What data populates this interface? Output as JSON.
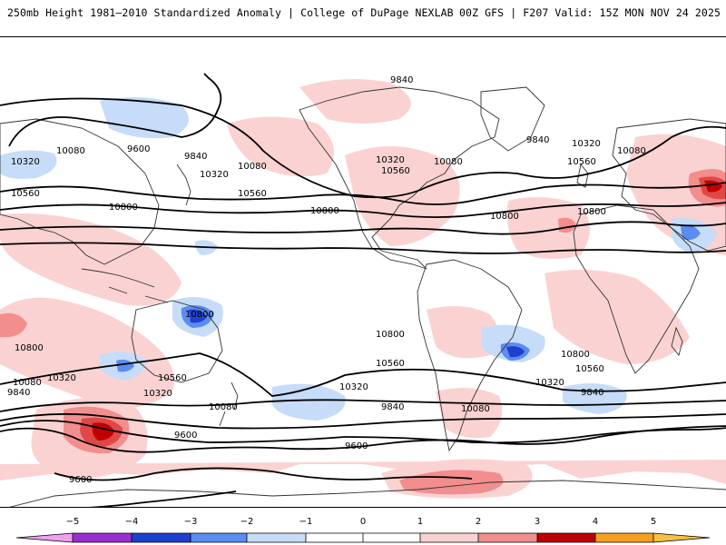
{
  "header": {
    "title_left": "250mb Height 1981–2010 Standardized Anomaly | College of DuPage NEXLAB",
    "title_right": "00Z GFS | F207 Valid: 15Z MON NOV 24 2025"
  },
  "colors": {
    "neg5": "#f0a0f0",
    "neg4": "#9a2fd0",
    "neg3": "#1f3fd0",
    "neg2": "#5b8cf0",
    "neg1": "#c6dcf8",
    "neutral": "#ffffff",
    "pos1": "#fbd2d2",
    "pos2": "#f28e8e",
    "pos3": "#e04848",
    "pos4": "#c00000",
    "pos5": "#f6a020",
    "contour": "#000000",
    "coast": "#333333"
  },
  "map": {
    "contour_labels": [
      {
        "id": "c9840-npac",
        "text": "9840"
      },
      {
        "id": "c9840-wpac",
        "text": "9840"
      },
      {
        "id": "c9600-npac",
        "text": "9600"
      },
      {
        "id": "c9840-natl",
        "text": "9840"
      },
      {
        "id": "c10320-natl",
        "text": "10320"
      },
      {
        "id": "c10080-eur",
        "text": "10080"
      },
      {
        "id": "c10080-w",
        "text": "10080"
      },
      {
        "id": "c10320-w",
        "text": "10320"
      },
      {
        "id": "c10080-pac",
        "text": "10080"
      },
      {
        "id": "c10320-pac",
        "text": "10320"
      },
      {
        "id": "c10560-w",
        "text": "10560"
      },
      {
        "id": "c10560-pac",
        "text": "10560"
      },
      {
        "id": "c10320-us",
        "text": "10320"
      },
      {
        "id": "c10560-us",
        "text": "10560"
      },
      {
        "id": "c10080-us",
        "text": "10080"
      },
      {
        "id": "c10560-atl",
        "text": "10560"
      },
      {
        "id": "c10800-w",
        "text": "10800"
      },
      {
        "id": "c10800-pac",
        "text": "10800"
      },
      {
        "id": "c10800-atl",
        "text": "10800"
      },
      {
        "id": "c10800-afr",
        "text": "10800"
      },
      {
        "id": "c10800-aus",
        "text": "10800"
      },
      {
        "id": "c10800-sw",
        "text": "10800"
      },
      {
        "id": "c10800-spac",
        "text": "10800"
      },
      {
        "id": "c10800-satl",
        "text": "10800"
      },
      {
        "id": "c10560-aus",
        "text": "10560"
      },
      {
        "id": "c10560-spac",
        "text": "10560"
      },
      {
        "id": "c10560-satl",
        "text": "10560"
      },
      {
        "id": "c10320-sw",
        "text": "10320"
      },
      {
        "id": "c10320-aus",
        "text": "10320"
      },
      {
        "id": "c10320-spac",
        "text": "10320"
      },
      {
        "id": "c10320-satl",
        "text": "10320"
      },
      {
        "id": "c10080-sw",
        "text": "10080"
      },
      {
        "id": "c10080-aus",
        "text": "10080"
      },
      {
        "id": "c10080-sam",
        "text": "10080"
      },
      {
        "id": "c9840-sw",
        "text": "9840"
      },
      {
        "id": "c9840-spac",
        "text": "9840"
      },
      {
        "id": "c9840-satl",
        "text": "9840"
      },
      {
        "id": "c9600-sw",
        "text": "9600"
      },
      {
        "id": "c9600-spac",
        "text": "9600"
      },
      {
        "id": "c9600-s",
        "text": "9600"
      }
    ]
  },
  "colorbar": {
    "ticks": [
      {
        "id": "t-5",
        "text": "−5"
      },
      {
        "id": "t-4",
        "text": "−4"
      },
      {
        "id": "t-3",
        "text": "−3"
      },
      {
        "id": "t-2",
        "text": "−2"
      },
      {
        "id": "t-1",
        "text": "−1"
      },
      {
        "id": "t0",
        "text": "0"
      },
      {
        "id": "t1",
        "text": "1"
      },
      {
        "id": "t2",
        "text": "2"
      },
      {
        "id": "t3",
        "text": "3"
      },
      {
        "id": "t4",
        "text": "4"
      },
      {
        "id": "t5",
        "text": "5"
      }
    ]
  }
}
